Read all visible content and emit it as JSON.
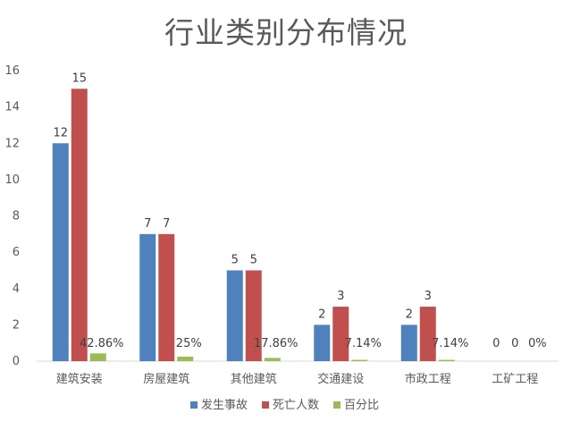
{
  "chart_data": {
    "type": "bar",
    "title": "行业类别分布情况",
    "categories": [
      "建筑安装",
      "房屋建筑",
      "其他建筑",
      "交通建设",
      "市政工程",
      "工矿工程"
    ],
    "series": [
      {
        "name": "发生事故",
        "values": [
          12,
          7,
          5,
          2,
          2,
          0
        ],
        "labels": [
          "12",
          "7",
          "5",
          "2",
          "2",
          "0"
        ],
        "color": "#4f81bd"
      },
      {
        "name": "死亡人数",
        "values": [
          15,
          7,
          5,
          3,
          3,
          0
        ],
        "labels": [
          "15",
          "7",
          "5",
          "3",
          "3",
          "0"
        ],
        "color": "#c0504d"
      },
      {
        "name": "百分比",
        "values": [
          0.4286,
          0.25,
          0.1786,
          0.0714,
          0.0714,
          0
        ],
        "labels": [
          "42.86%",
          "25%",
          "17.86%",
          "7.14%",
          "7.14%",
          "0%"
        ],
        "color": "#9bbb59"
      }
    ],
    "ylim": [
      0,
      16
    ],
    "yticks": [
      0,
      2,
      4,
      6,
      8,
      10,
      12,
      14,
      16
    ],
    "grid": false,
    "legend_position": "bottom"
  }
}
